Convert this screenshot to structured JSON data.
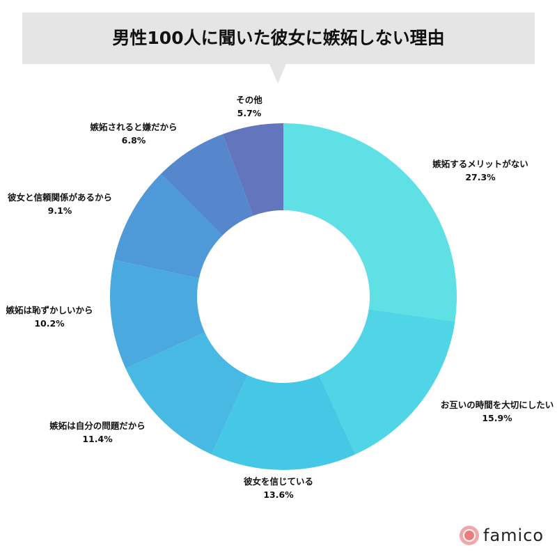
{
  "title": "男性100人に聞いた彼女に嫉妬しない理由",
  "logo": {
    "text": "famico",
    "icon": "famico-logo-icon"
  },
  "colors": {
    "title_background": "#e5e5e5",
    "text": "#111111",
    "logo_accent": "#ec7b7b"
  },
  "chart_data": {
    "type": "pie",
    "style": "donut",
    "title": "男性100人に聞いた彼女に嫉妬しない理由",
    "unit": "%",
    "categories": [
      "嫉妬するメリットがない",
      "お互いの時間を大切にしたい",
      "彼女を信じている",
      "嫉妬は自分の問題だから",
      "嫉妬は恥ずかしいから",
      "彼女と信頼関係があるから",
      "嫉妬されると嫌だから",
      "その他"
    ],
    "values": [
      27.3,
      15.9,
      13.6,
      11.4,
      10.2,
      9.1,
      6.8,
      5.7
    ],
    "value_labels": [
      "27.3%",
      "15.9%",
      "13.6%",
      "11.4%",
      "10.2%",
      "9.1%",
      "6.8%",
      "5.7%"
    ],
    "colors": [
      "#5ee0e5",
      "#4fd5e5",
      "#45c8e6",
      "#47b9e2",
      "#4aaadf",
      "#4e99d7",
      "#5686cc",
      "#6376bd"
    ],
    "legend": "none"
  }
}
